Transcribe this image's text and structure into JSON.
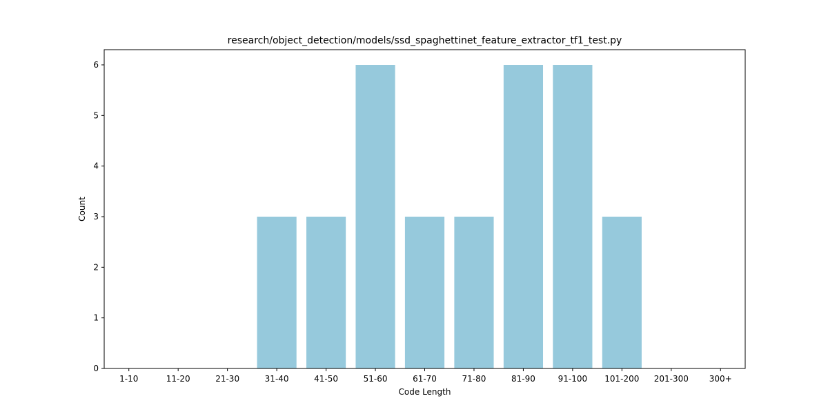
{
  "chart_data": {
    "type": "bar",
    "title": "research/object_detection/models/ssd_spaghettinet_feature_extractor_tf1_test.py",
    "xlabel": "Code Length",
    "ylabel": "Count",
    "categories": [
      "1-10",
      "11-20",
      "21-30",
      "31-40",
      "41-50",
      "51-60",
      "61-70",
      "71-80",
      "81-90",
      "91-100",
      "101-200",
      "201-300",
      "300+"
    ],
    "values": [
      0,
      0,
      0,
      3,
      3,
      6,
      3,
      3,
      6,
      6,
      3,
      0,
      0
    ],
    "ylim": [
      0,
      6.3
    ],
    "yticks": [
      0,
      1,
      2,
      3,
      4,
      5,
      6
    ],
    "bar_color": "#96c9dc",
    "grid": false,
    "legend": "none"
  }
}
